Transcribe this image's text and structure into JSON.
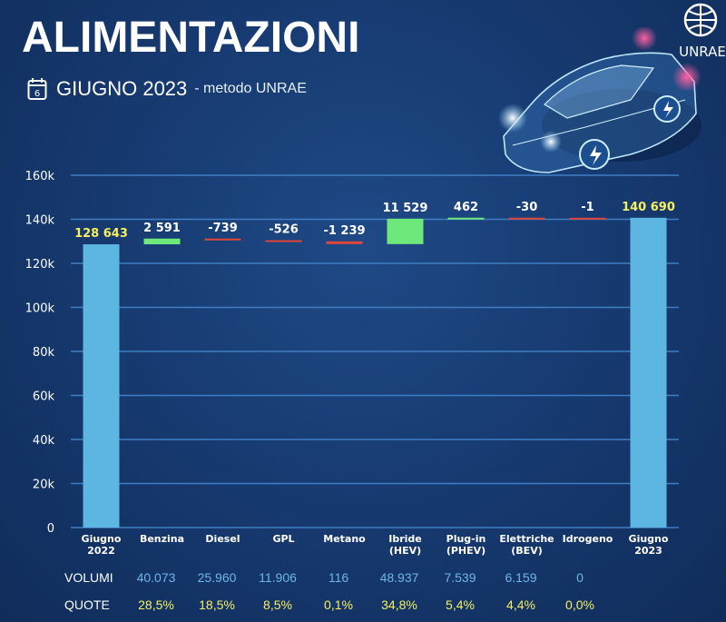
{
  "header": {
    "title": "ALIMENTAZIONI",
    "subtitle": "GIUGNO 2023",
    "subtitle_note": "- metodo UNRAE",
    "calendar_day": "6",
    "logo_text": "UNRAE"
  },
  "chart_data": {
    "type": "bar",
    "subtype": "waterfall",
    "categories": [
      [
        "Giugno",
        "2022"
      ],
      [
        "Benzina"
      ],
      [
        "Diesel"
      ],
      [
        "GPL"
      ],
      [
        "Metano"
      ],
      [
        "Ibride",
        "(HEV)"
      ],
      [
        "Plug-in",
        "(PHEV)"
      ],
      [
        "Elettriche",
        "(BEV)"
      ],
      [
        "Idrogeno"
      ],
      [
        "Giugno",
        "2023"
      ]
    ],
    "values": [
      128643,
      2591,
      -739,
      -526,
      -1239,
      11529,
      462,
      -30,
      -1,
      140690
    ],
    "labels": [
      "128 643",
      "2 591",
      "-739",
      "-526",
      "-1 239",
      "11 529",
      "462",
      "-30",
      "-1",
      "140 690"
    ],
    "kinds": [
      "total",
      "delta",
      "delta",
      "delta",
      "delta",
      "delta",
      "delta",
      "delta",
      "delta",
      "total"
    ],
    "ylim": [
      0,
      160000
    ],
    "yticks": [
      0,
      20000,
      40000,
      60000,
      80000,
      100000,
      120000,
      140000,
      160000
    ],
    "ytick_labels": [
      "0",
      "20k",
      "40k",
      "60k",
      "80k",
      "100k",
      "120k",
      "140k",
      "160k"
    ],
    "grid": true,
    "colors": {
      "total": "#5db5e2",
      "increase": "#6ee87a",
      "decrease": "#e0453a",
      "grid": "#3f7ec4",
      "total_label": "#f6ef5f",
      "delta_label": "#ffffff"
    }
  },
  "table": {
    "rows": [
      {
        "label": "VOLUMI",
        "values": [
          "40.073",
          "25.960",
          "11.906",
          "116",
          "48.937",
          "7.539",
          "6.159",
          "0"
        ]
      },
      {
        "label": "QUOTE",
        "values": [
          "28,5%",
          "18,5%",
          "8,5%",
          "0,1%",
          "34,8%",
          "5,4%",
          "4,4%",
          "0,0%"
        ]
      }
    ]
  }
}
